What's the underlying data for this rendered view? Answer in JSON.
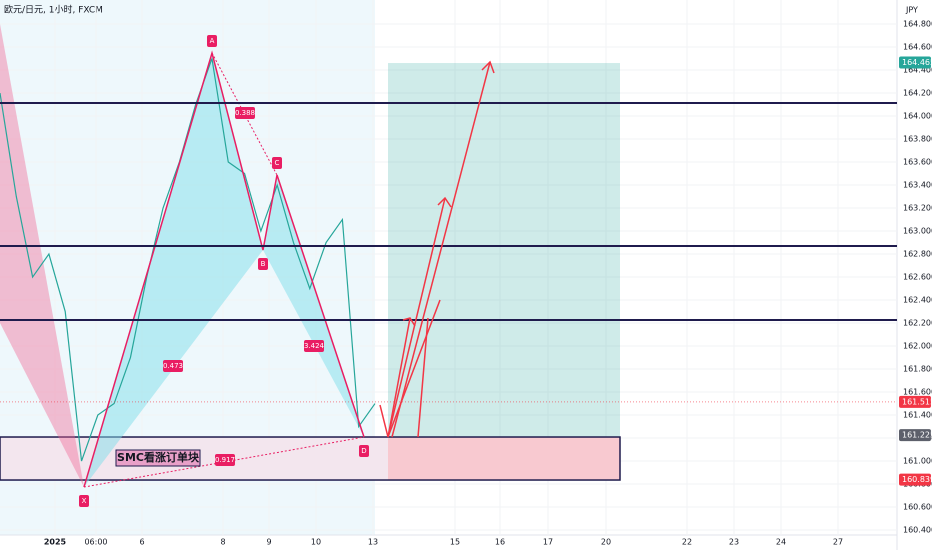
{
  "chart_data": {
    "type": "line",
    "title": "欧元/日元, 1小时, FXCM",
    "y_axis_label": "JPY",
    "ylim": [
      160.357,
      165.009
    ],
    "yticks": [
      {
        "value": 160.4,
        "label": "160.400"
      },
      {
        "value": 160.6,
        "label": "160.600"
      },
      {
        "value": 160.8,
        "label": "160.800"
      },
      {
        "value": 161.0,
        "label": "161.000"
      },
      {
        "value": 161.2,
        "label": "161.200"
      },
      {
        "value": 161.4,
        "label": "161.400"
      },
      {
        "value": 161.6,
        "label": "161.600"
      },
      {
        "value": 161.8,
        "label": "161.800"
      },
      {
        "value": 162.0,
        "label": "162.000"
      },
      {
        "value": 162.2,
        "label": "162.200"
      },
      {
        "value": 162.4,
        "label": "162.400"
      },
      {
        "value": 162.6,
        "label": "162.600"
      },
      {
        "value": 162.8,
        "label": "162.800"
      },
      {
        "value": 163.0,
        "label": "163.000"
      },
      {
        "value": 163.2,
        "label": "163.200"
      },
      {
        "value": 163.4,
        "label": "163.400"
      },
      {
        "value": 163.6,
        "label": "163.600"
      },
      {
        "value": 163.8,
        "label": "163.800"
      },
      {
        "value": 164.0,
        "label": "164.000"
      },
      {
        "value": 164.2,
        "label": "164.200"
      },
      {
        "value": 164.4,
        "label": "164.400"
      },
      {
        "value": 164.6,
        "label": "164.600"
      },
      {
        "value": 164.8,
        "label": "164.800"
      }
    ],
    "x_labels": [
      "2025",
      "06:00",
      "6",
      "8",
      "9",
      "10",
      "13",
      "15",
      "16",
      "17",
      "20",
      "22",
      "23",
      "24",
      "27"
    ],
    "series": [
      {
        "name": "EUR/JPY",
        "color": "#26a69a",
        "values": [
          164.2,
          163.3,
          162.6,
          162.8,
          162.3,
          161.0,
          161.4,
          161.5,
          161.9,
          162.6,
          163.2,
          163.6,
          164.1,
          164.5,
          163.6,
          163.5,
          163.0,
          163.4,
          162.9,
          162.5,
          162.9,
          163.1,
          161.3,
          161.5
        ]
      }
    ],
    "pattern": {
      "points": [
        "X",
        "A",
        "B",
        "C",
        "D"
      ],
      "values": [
        160.774,
        164.548,
        162.835,
        163.487,
        161.209
      ],
      "ratios": [
        "0.388",
        "0.473",
        "3.424",
        "0.917"
      ]
    },
    "levels": [
      164.113,
      162.87,
      162.226
    ],
    "order_block": {
      "label": "SMC看涨订单块",
      "range": [
        160.835,
        161.209
      ]
    },
    "target": 164.461,
    "price_labels": [
      {
        "value": 164.465,
        "label": "164.465",
        "color": "#26a69a"
      },
      {
        "value": 161.515,
        "label": "161.515",
        "color": "#f23645"
      },
      {
        "value": 161.225,
        "label": "161.225",
        "color": "#5d606b"
      },
      {
        "value": 160.839,
        "label": "160.839",
        "color": "#f23645"
      }
    ]
  }
}
